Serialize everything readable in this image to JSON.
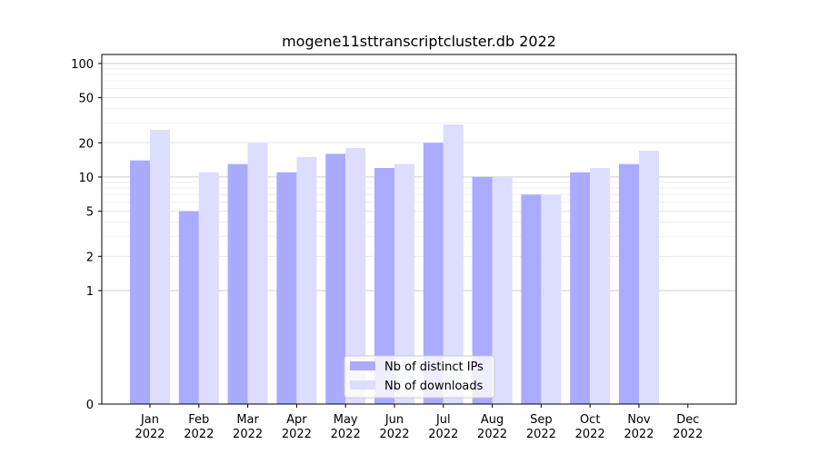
{
  "chart_data": {
    "type": "bar",
    "title": "mogene11sttranscriptcluster.db 2022",
    "categories": [
      "Jan\n2022",
      "Feb\n2022",
      "Mar\n2022",
      "Apr\n2022",
      "May\n2022",
      "Jun\n2022",
      "Jul\n2022",
      "Aug\n2022",
      "Sep\n2022",
      "Oct\n2022",
      "Nov\n2022",
      "Dec\n2022"
    ],
    "series": [
      {
        "name": "Nb of distinct IPs",
        "color": "#aaaaff",
        "values": [
          14,
          5,
          13,
          11,
          16,
          12,
          20,
          10,
          7,
          11,
          13,
          0
        ]
      },
      {
        "name": "Nb of downloads",
        "color": "#ddddff",
        "values": [
          26,
          11,
          20,
          15,
          18,
          13,
          29,
          10,
          7,
          12,
          17,
          0
        ]
      }
    ],
    "yscale": "symlog",
    "yticks": [
      0,
      1,
      2,
      5,
      10,
      20,
      50,
      100
    ],
    "ylim": [
      0,
      120
    ],
    "grid": true,
    "legend_position": "lower-center"
  }
}
